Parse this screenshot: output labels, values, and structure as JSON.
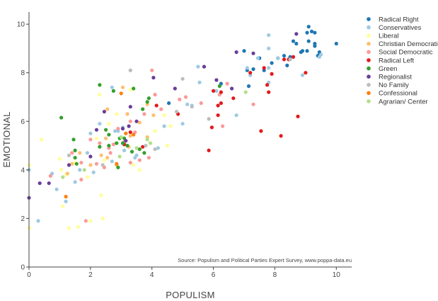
{
  "chart_data": {
    "type": "scatter",
    "xlabel": "POPULISM",
    "ylabel": "EMOTIONAL",
    "xlim": [
      0,
      10.5
    ],
    "ylim": [
      0,
      10.5
    ],
    "xticks": [
      "0",
      "2",
      "4",
      "6",
      "8",
      "10"
    ],
    "yticks": [
      "0",
      "2",
      "4",
      "6",
      "8",
      "10"
    ],
    "grid": false,
    "legend_position": "top-right",
    "annotation": "Source: Populism and Political Parties Expert Survey, www.poppa-data.eu",
    "series": [
      {
        "name": "Radical Right",
        "color": "#1f77b4",
        "points": [
          [
            9.1,
            9.9
          ],
          [
            9.2,
            9.7
          ],
          [
            9.05,
            9.65
          ],
          [
            9.3,
            9.65
          ],
          [
            10.0,
            9.2
          ],
          [
            9.3,
            9.2
          ],
          [
            8.7,
            9.2
          ],
          [
            8.6,
            9.3
          ],
          [
            9.1,
            9.3
          ],
          [
            9.3,
            9.1
          ],
          [
            8.9,
            8.9
          ],
          [
            9.05,
            8.9
          ],
          [
            8.85,
            8.85
          ],
          [
            9.45,
            8.85
          ],
          [
            9.45,
            8.75
          ],
          [
            9.4,
            8.7
          ],
          [
            8.5,
            8.65
          ],
          [
            8.3,
            8.7
          ],
          [
            8.1,
            8.6
          ],
          [
            8.4,
            8.3
          ],
          [
            7.0,
            8.9
          ],
          [
            7.5,
            8.6
          ],
          [
            7.1,
            8.1
          ],
          [
            7.3,
            8.15
          ],
          [
            7.9,
            8.4
          ],
          [
            7.65,
            8.1
          ],
          [
            6.25,
            7.55
          ],
          [
            7.15,
            7.45
          ],
          [
            4.55,
            6.75
          ]
        ]
      },
      {
        "name": "Conservatives",
        "color": "#9ecae1",
        "points": [
          [
            7.8,
            9.55
          ],
          [
            7.8,
            9.0
          ],
          [
            7.8,
            8.2
          ],
          [
            7.45,
            8.6
          ],
          [
            7.1,
            8.2
          ],
          [
            8.1,
            8.6
          ],
          [
            9.45,
            8.65
          ],
          [
            9.5,
            8.75
          ],
          [
            7.2,
            7.9
          ],
          [
            8.9,
            7.9
          ],
          [
            7.8,
            7.6
          ],
          [
            5.5,
            8.25
          ],
          [
            3.3,
            8.1
          ],
          [
            6.75,
            6.25
          ],
          [
            6.1,
            7.25
          ],
          [
            5.15,
            6.7
          ],
          [
            5.3,
            6.65
          ],
          [
            5.0,
            5.9
          ],
          [
            4.4,
            5.8
          ],
          [
            3.05,
            5.75
          ],
          [
            2.8,
            5.6
          ],
          [
            2.3,
            5.9
          ],
          [
            2.0,
            5.5
          ],
          [
            1.9,
            4.7
          ],
          [
            2.7,
            7.4
          ],
          [
            2.9,
            5.6
          ],
          [
            2.1,
            3.9
          ],
          [
            1.5,
            3.5
          ],
          [
            0.9,
            3.2
          ],
          [
            0.75,
            3.85
          ],
          [
            0.3,
            1.9
          ],
          [
            0.0,
            4.0
          ],
          [
            3.1,
            4.8
          ],
          [
            3.5,
            4.6
          ],
          [
            2.7,
            4.35
          ],
          [
            4.2,
            4.9
          ],
          [
            3.45,
            4.5
          ],
          [
            1.2,
            2.7
          ],
          [
            1.65,
            4.0
          ],
          [
            5.55,
            7.6
          ]
        ]
      },
      {
        "name": "Liberal",
        "color": "#ffff99",
        "points": [
          [
            0.0,
            1.6
          ],
          [
            0.0,
            4.2
          ],
          [
            0.4,
            5.25
          ],
          [
            1.0,
            4.45
          ],
          [
            1.05,
            4.0
          ],
          [
            1.2,
            3.8
          ],
          [
            1.3,
            1.6
          ],
          [
            1.6,
            1.65
          ],
          [
            2.0,
            1.9
          ],
          [
            2.35,
            2.95
          ],
          [
            2.4,
            2.0
          ],
          [
            1.9,
            3.7
          ],
          [
            1.5,
            4.3
          ],
          [
            2.2,
            5.3
          ],
          [
            2.6,
            5.9
          ],
          [
            3.4,
            4.2
          ],
          [
            3.6,
            4.0
          ],
          [
            4.5,
            5.0
          ],
          [
            4.4,
            6.25
          ],
          [
            2.85,
            6.3
          ],
          [
            3.3,
            7.3
          ],
          [
            4.6,
            5.8
          ],
          [
            1.1,
            2.5
          ],
          [
            2.3,
            7.1
          ],
          [
            4.1,
            5.6
          ],
          [
            2.45,
            4.4
          ]
        ]
      },
      {
        "name": "Christian Democratic",
        "color": "#fdbf6f",
        "points": [
          [
            1.25,
            3.85
          ],
          [
            1.4,
            4.25
          ],
          [
            2.0,
            4.2
          ],
          [
            2.55,
            4.5
          ],
          [
            2.85,
            4.2
          ],
          [
            2.55,
            6.5
          ],
          [
            3.3,
            5.4
          ],
          [
            3.05,
            7.4
          ],
          [
            3.2,
            6.3
          ],
          [
            4.05,
            6.25
          ],
          [
            3.85,
            6.7
          ],
          [
            3.25,
            4.95
          ],
          [
            3.85,
            5.35
          ],
          [
            3.6,
            5.95
          ],
          [
            2.35,
            4.6
          ],
          [
            1.65,
            4.7
          ],
          [
            2.5,
            5.3
          ]
        ]
      },
      {
        "name": "Social Democratic",
        "color": "#fb9a99",
        "points": [
          [
            0.7,
            3.75
          ],
          [
            1.4,
            4.7
          ],
          [
            1.7,
            3.6
          ],
          [
            1.85,
            1.9
          ],
          [
            2.0,
            5.25
          ],
          [
            2.2,
            4.25
          ],
          [
            2.3,
            5.1
          ],
          [
            2.45,
            4.1
          ],
          [
            2.6,
            4.9
          ],
          [
            2.75,
            5.05
          ],
          [
            3.1,
            5.15
          ],
          [
            3.3,
            4.3
          ],
          [
            3.45,
            5.55
          ],
          [
            3.6,
            4.4
          ],
          [
            3.75,
            6.3
          ],
          [
            4.0,
            8.1
          ],
          [
            4.1,
            7.1
          ],
          [
            4.3,
            6.5
          ],
          [
            4.9,
            6.9
          ],
          [
            5.1,
            7.0
          ],
          [
            5.6,
            6.75
          ],
          [
            6.3,
            5.8
          ],
          [
            7.3,
            6.7
          ],
          [
            6.2,
            7.1
          ],
          [
            3.9,
            4.5
          ],
          [
            2.9,
            5.7
          ],
          [
            3.3,
            6.0
          ],
          [
            1.7,
            4.3
          ],
          [
            2.65,
            4.7
          ],
          [
            6.45,
            7.55
          ]
        ]
      },
      {
        "name": "Radical Left",
        "color": "#e31a1c",
        "points": [
          [
            7.55,
            5.6
          ],
          [
            8.2,
            5.4
          ],
          [
            8.75,
            6.2
          ],
          [
            5.85,
            4.8
          ],
          [
            5.95,
            5.75
          ],
          [
            6.15,
            6.25
          ],
          [
            6.15,
            6.65
          ],
          [
            6.25,
            6.75
          ],
          [
            6.0,
            7.25
          ],
          [
            6.65,
            6.95
          ],
          [
            4.15,
            6.65
          ],
          [
            7.2,
            8.0
          ],
          [
            7.65,
            8.2
          ],
          [
            7.75,
            7.5
          ],
          [
            7.8,
            7.2
          ],
          [
            7.9,
            7.95
          ],
          [
            8.45,
            8.55
          ],
          [
            8.6,
            8.65
          ],
          [
            9.0,
            8.0
          ],
          [
            8.3,
            8.55
          ],
          [
            6.25,
            7.2
          ],
          [
            4.85,
            6.3
          ],
          [
            3.7,
            4.95
          ],
          [
            3.3,
            5.55
          ],
          [
            3.1,
            5.05
          ]
        ]
      },
      {
        "name": "Green",
        "color": "#33a02c",
        "points": [
          [
            1.05,
            6.15
          ],
          [
            1.45,
            5.25
          ],
          [
            1.5,
            4.8
          ],
          [
            1.55,
            4.25
          ],
          [
            1.5,
            4.5
          ],
          [
            2.3,
            7.5
          ],
          [
            2.75,
            7.25
          ],
          [
            3.4,
            7.35
          ],
          [
            3.85,
            6.8
          ],
          [
            3.9,
            6.95
          ],
          [
            3.7,
            6.5
          ],
          [
            2.5,
            5.65
          ],
          [
            2.6,
            5.45
          ],
          [
            2.95,
            5.3
          ],
          [
            3.05,
            5.1
          ],
          [
            3.2,
            5.0
          ],
          [
            3.6,
            4.85
          ],
          [
            3.75,
            4.7
          ],
          [
            2.9,
            4.1
          ],
          [
            3.35,
            4.75
          ],
          [
            2.3,
            4.95
          ],
          [
            2.85,
            5.1
          ],
          [
            3.1,
            5.3
          ],
          [
            6.2,
            7.45
          ],
          [
            2.6,
            5.0
          ]
        ]
      },
      {
        "name": "Regionalist",
        "color": "#6a3d9a",
        "points": [
          [
            0.0,
            2.85
          ],
          [
            0.35,
            3.45
          ],
          [
            0.65,
            3.45
          ],
          [
            2.0,
            4.55
          ],
          [
            2.2,
            5.65
          ],
          [
            2.45,
            6.4
          ],
          [
            3.05,
            5.7
          ],
          [
            3.25,
            5.8
          ],
          [
            3.5,
            6.0
          ],
          [
            3.3,
            6.6
          ],
          [
            4.05,
            7.8
          ],
          [
            4.75,
            7.35
          ],
          [
            5.7,
            8.25
          ],
          [
            6.1,
            7.7
          ],
          [
            6.6,
            7.35
          ],
          [
            7.3,
            8.8
          ],
          [
            6.75,
            8.85
          ],
          [
            8.7,
            9.6
          ],
          [
            3.15,
            5.2
          ],
          [
            1.3,
            4.2
          ]
        ]
      },
      {
        "name": "No Family",
        "color": "#bdbdbd",
        "points": [
          [
            1.3,
            4.6
          ],
          [
            4.1,
            4.85
          ],
          [
            3.3,
            8.1
          ],
          [
            5.85,
            6.1
          ],
          [
            5.3,
            6.6
          ],
          [
            5.0,
            7.75
          ],
          [
            8.5,
            8.55
          ],
          [
            4.8,
            6.4
          ],
          [
            3.8,
            5.0
          ],
          [
            2.4,
            4.2
          ]
        ]
      },
      {
        "name": "Confessional",
        "color": "#ff7f0e",
        "points": [
          [
            1.2,
            2.9
          ],
          [
            3.15,
            5.5
          ],
          [
            3.4,
            5.45
          ],
          [
            3.0,
            7.15
          ],
          [
            2.85,
            4.25
          ]
        ]
      },
      {
        "name": "Agrarian/ Center",
        "color": "#b2df8a",
        "points": [
          [
            1.1,
            3.7
          ],
          [
            1.8,
            4.0
          ],
          [
            3.0,
            5.35
          ],
          [
            3.85,
            5.25
          ],
          [
            3.95,
            5.1
          ],
          [
            7.05,
            7.2
          ],
          [
            2.95,
            4.55
          ],
          [
            3.5,
            4.9
          ]
        ]
      }
    ]
  }
}
